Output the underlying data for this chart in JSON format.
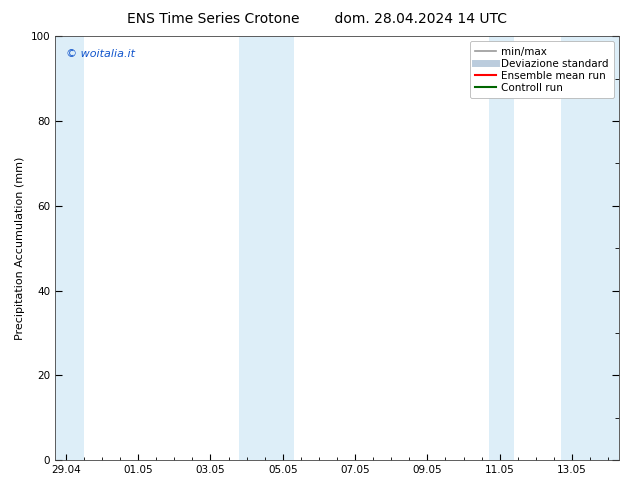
{
  "title_left": "ENS Time Series Crotone",
  "title_right": "dom. 28.04.2024 14 UTC",
  "ylabel": "Precipitation Accumulation (mm)",
  "ylim": [
    0,
    100
  ],
  "yticks": [
    0,
    20,
    40,
    60,
    80,
    100
  ],
  "x_tick_labels": [
    "29.04",
    "01.05",
    "03.05",
    "05.05",
    "07.05",
    "09.05",
    "11.05",
    "13.05"
  ],
  "background_color": "#ffffff",
  "plot_bg_color": "#ffffff",
  "band_color": "#ddeef8",
  "legend_entries": [
    {
      "label": "min/max",
      "color": "#999999",
      "lw": 1.2
    },
    {
      "label": "Deviazione standard",
      "color": "#bbccdd",
      "lw": 5
    },
    {
      "label": "Ensemble mean run",
      "color": "#ff0000",
      "lw": 1.5
    },
    {
      "label": "Controll run",
      "color": "#006600",
      "lw": 1.5
    }
  ],
  "watermark_text": "© woitalia.it",
  "watermark_color": "#1155cc",
  "font_size_title": 10,
  "font_size_labels": 8,
  "font_size_ticks": 7.5,
  "font_size_legend": 7.5,
  "font_size_watermark": 8
}
